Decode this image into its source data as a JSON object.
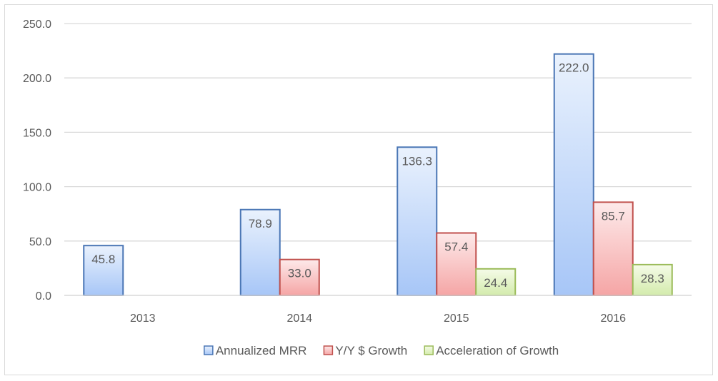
{
  "chart_data": {
    "type": "bar",
    "categories": [
      "2013",
      "2014",
      "2015",
      "2016"
    ],
    "series": [
      {
        "name": "Annualized MRR",
        "values": [
          45.8,
          78.9,
          136.3,
          222.0
        ],
        "labels": [
          "45.8",
          "78.9",
          "136.3",
          "222.0"
        ],
        "fill_top": "#eaf2fd",
        "fill_bottom": "#a7c6f7",
        "stroke": "#4a76b5"
      },
      {
        "name": "Y/Y $ Growth",
        "values": [
          null,
          33.0,
          57.4,
          85.7
        ],
        "labels": [
          "",
          "33.0",
          "57.4",
          "85.7"
        ],
        "fill_top": "#fdeaea",
        "fill_bottom": "#f5a5a5",
        "stroke": "#c0504d"
      },
      {
        "name": "Acceleration of Growth",
        "values": [
          null,
          null,
          24.4,
          28.3
        ],
        "labels": [
          "",
          "",
          "24.4",
          "28.3"
        ],
        "fill_top": "#f5fbe8",
        "fill_bottom": "#d3ebac",
        "stroke": "#9bbb59"
      }
    ],
    "y_ticks": [
      "0.0",
      "50.0",
      "100.0",
      "150.0",
      "200.0",
      "250.0"
    ],
    "ylim": [
      0,
      250
    ],
    "title": "",
    "xlabel": "",
    "ylabel": "",
    "grid": true,
    "legend_position": "bottom",
    "colors": {
      "gridline": "#d9d9d9",
      "axis_text": "#595959"
    }
  }
}
